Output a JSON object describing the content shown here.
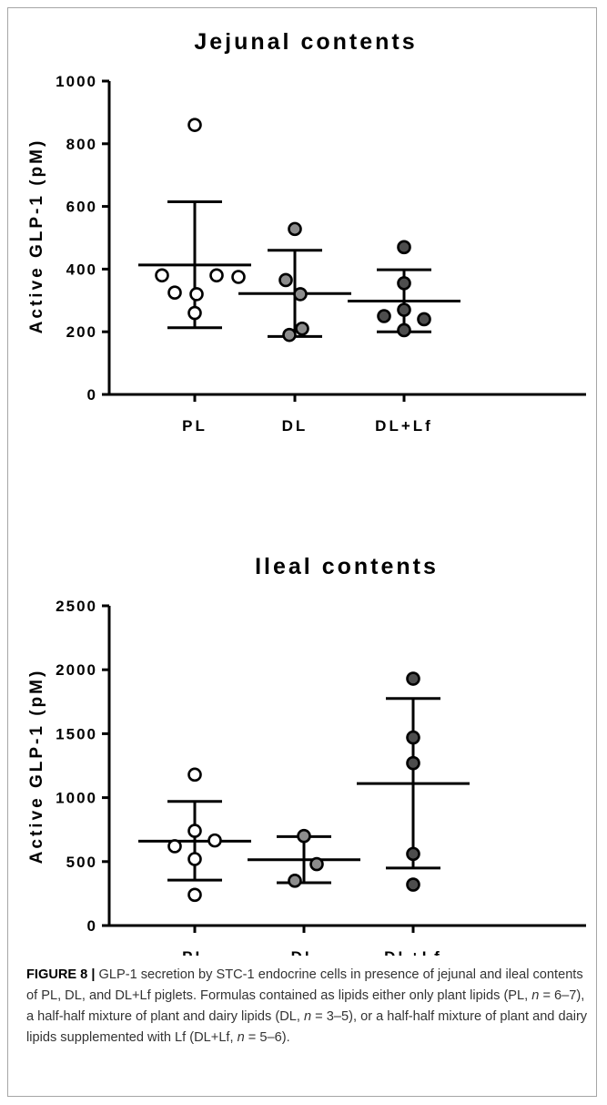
{
  "figure_label": "FIGURE 8 |",
  "caption": {
    "part1": " GLP-1 secretion by STC-1 endocrine cells in presence of jejunal and ileal contents of PL, DL, and DL+Lf piglets. Formulas contained as lipids either only plant lipids (PL, ",
    "n1": "n",
    "part2": " = 6–7), a half-half mixture of plant and dairy lipids (DL, ",
    "n2": "n",
    "part3": " = 3–5), or a half-half mixture of plant and dairy lipids supplemented with Lf (DL+Lf, ",
    "n3": "n",
    "part4": " = 5–6)."
  },
  "colors": {
    "PL": "#ffffff",
    "DL": "#8c8c8c",
    "DL+Lf": "#4d4d4d",
    "stroke": "#000000"
  },
  "chart_data": [
    {
      "type": "scatter",
      "title": "Jejunal contents",
      "ylabel": "Active GLP-1 (pM)",
      "ylim": [
        0,
        1000
      ],
      "yticks": [
        0,
        200,
        400,
        600,
        800,
        1000
      ],
      "categories": [
        "PL",
        "DL",
        "DL+Lf"
      ],
      "series": [
        {
          "name": "PL",
          "points": [
            860,
            380,
            375,
            380,
            325,
            320,
            260
          ],
          "mean": 413,
          "sd_low": 213,
          "sd_high": 615
        },
        {
          "name": "DL",
          "points": [
            528,
            365,
            320,
            210,
            190
          ],
          "mean": 322,
          "sd_low": 185,
          "sd_high": 460
        },
        {
          "name": "DL+Lf",
          "points": [
            470,
            355,
            270,
            250,
            240,
            205
          ],
          "mean": 298,
          "sd_low": 200,
          "sd_high": 398
        }
      ]
    },
    {
      "type": "scatter",
      "title": "Ileal contents",
      "ylabel": "Active GLP-1 (pM)",
      "ylim": [
        0,
        2500
      ],
      "yticks": [
        0,
        500,
        1000,
        1500,
        2000,
        2500
      ],
      "categories": [
        "PL",
        "DL",
        "DL+Lf"
      ],
      "series": [
        {
          "name": "PL",
          "points": [
            1180,
            740,
            665,
            620,
            520,
            240
          ],
          "mean": 660,
          "sd_low": 355,
          "sd_high": 970
        },
        {
          "name": "DL",
          "points": [
            700,
            480,
            350
          ],
          "mean": 515,
          "sd_low": 335,
          "sd_high": 695
        },
        {
          "name": "DL+Lf",
          "points": [
            1930,
            1470,
            1270,
            560,
            320
          ],
          "mean": 1110,
          "sd_low": 450,
          "sd_high": 1775
        }
      ]
    }
  ]
}
